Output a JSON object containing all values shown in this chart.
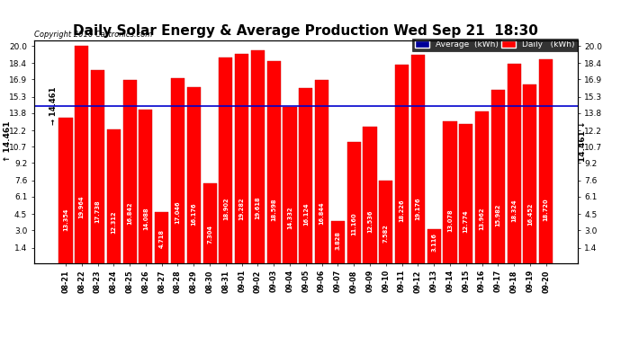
{
  "title": "Daily Solar Energy & Average Production Wed Sep 21  18:30",
  "copyright": "Copyright 2016 Cartronics.com",
  "average_value": 14.461,
  "average_label": "14.461",
  "bar_color": "#FF0000",
  "average_line_color": "#0000CD",
  "background_color": "#FFFFFF",
  "plot_bg_color": "#FFFFFF",
  "dates": [
    "08-21",
    "08-22",
    "08-23",
    "08-24",
    "08-25",
    "08-26",
    "08-27",
    "08-28",
    "08-29",
    "08-30",
    "08-31",
    "09-01",
    "09-02",
    "09-03",
    "09-04",
    "09-05",
    "09-06",
    "09-07",
    "09-08",
    "09-09",
    "09-10",
    "09-11",
    "09-12",
    "09-13",
    "09-14",
    "09-15",
    "09-16",
    "09-17",
    "09-18",
    "09-19",
    "09-20"
  ],
  "values": [
    13.354,
    19.964,
    17.738,
    12.312,
    16.842,
    14.088,
    4.718,
    17.046,
    16.176,
    7.304,
    18.902,
    19.282,
    19.618,
    18.598,
    14.332,
    16.124,
    16.844,
    3.828,
    11.16,
    12.536,
    7.582,
    18.226,
    19.176,
    3.116,
    13.078,
    12.774,
    13.962,
    15.982,
    18.324,
    16.452,
    18.72
  ],
  "yticks": [
    1.4,
    3.0,
    4.5,
    6.1,
    7.6,
    9.2,
    10.7,
    12.2,
    13.8,
    15.3,
    16.9,
    18.4,
    20.0
  ],
  "ylim": [
    0.0,
    20.5
  ],
  "legend_avg_color": "#000099",
  "legend_daily_color": "#FF0000",
  "grid_color": "#BBBBBB",
  "title_fontsize": 11,
  "bar_width": 0.85
}
